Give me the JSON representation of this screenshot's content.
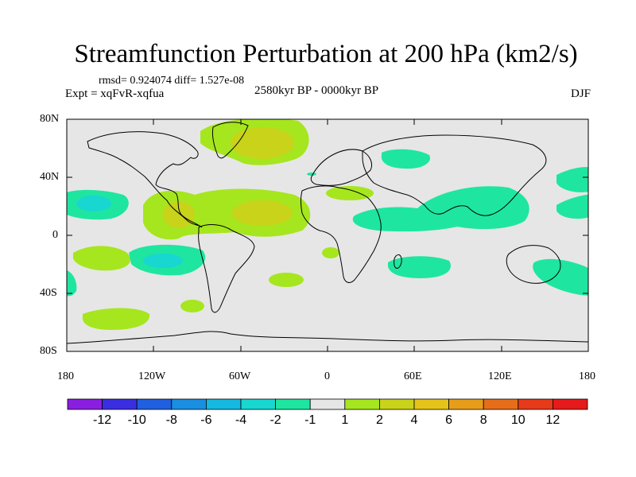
{
  "title": "Streamfunction Perturbation at 200 hPa (km2/s)",
  "stats": "rmsd= 0.924074 diff= 1.527e-08",
  "experiment": "Expt = xqFvR-xqfua",
  "period": "2580kyr BP - 0000kyr BP",
  "season": "DJF",
  "lat_labels": [
    "80N",
    "40N",
    "0",
    "40S",
    "80S"
  ],
  "lon_labels": [
    "180",
    "120W",
    "60W",
    "0",
    "60E",
    "120E",
    "180"
  ],
  "colorbar": {
    "labels": [
      "-12",
      "-10",
      "-8",
      "-6",
      "-4",
      "-2",
      "-1",
      "1",
      "2",
      "4",
      "6",
      "8",
      "10",
      "12"
    ],
    "colors": [
      "#8a1ee0",
      "#3a2ee0",
      "#1f5fe0",
      "#1a8ee0",
      "#15b8e0",
      "#18d6d0",
      "#1ee6a0",
      "#e6e6e6",
      "#a6e61e",
      "#c8d31a",
      "#e6c31a",
      "#e69e1a",
      "#e66e1a",
      "#e63a1a",
      "#e61a1a"
    ]
  },
  "colors": {
    "background": "#e6e6e6",
    "coastline": "#000000"
  }
}
